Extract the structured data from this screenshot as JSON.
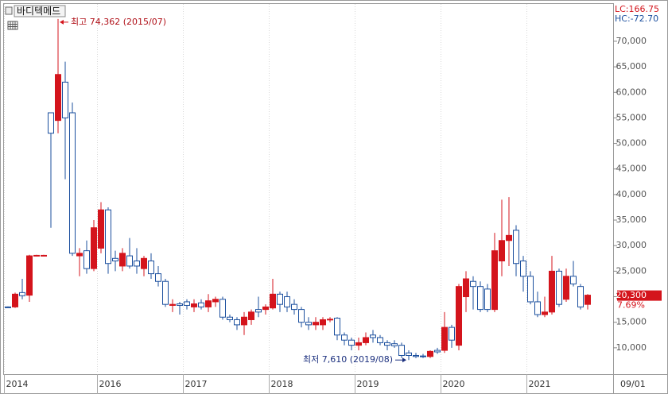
{
  "chart_data": {
    "type": "candlestick",
    "title": "바디텍메드",
    "categories": [
      "2014",
      null,
      null,
      null,
      null,
      null,
      null,
      null,
      null,
      null,
      null,
      null,
      null,
      "2016",
      null,
      null,
      null,
      null,
      null,
      null,
      null,
      null,
      null,
      null,
      null,
      "2017",
      null,
      null,
      null,
      null,
      null,
      null,
      null,
      null,
      null,
      null,
      null,
      "2018",
      null,
      null,
      null,
      null,
      null,
      null,
      null,
      null,
      null,
      null,
      null,
      "2019",
      null,
      null,
      null,
      null,
      null,
      null,
      null,
      null,
      null,
      null,
      null,
      "2020",
      null,
      null,
      null,
      null,
      null,
      null,
      null,
      null,
      null,
      null,
      null,
      "2021",
      null,
      null,
      null,
      null,
      null,
      null,
      null,
      null
    ],
    "open": [
      18000,
      18000,
      20800,
      20300,
      28000,
      28000,
      56000,
      54500,
      62000,
      56000,
      28000,
      29000,
      25500,
      29500,
      37000,
      27500,
      26000,
      28000,
      27000,
      25500,
      27000,
      24500,
      23000,
      18300,
      18600,
      19000,
      18000,
      18800,
      18000,
      19000,
      19500,
      16000,
      15500,
      14500,
      15500,
      17500,
      17500,
      17800,
      20500,
      20000,
      18500,
      17500,
      15000,
      14500,
      14500,
      15500,
      15800,
      12500,
      11500,
      10500,
      11000,
      12500,
      12000,
      11000,
      10800,
      10500,
      9000,
      8500,
      8400,
      8300,
      9500,
      9500,
      14000,
      10500,
      20000,
      23000,
      22000,
      21500,
      17500,
      27000,
      31000,
      33000,
      27000,
      24000,
      19000,
      16500,
      17000,
      25000,
      19500,
      24000,
      22000,
      18500
    ],
    "high": [
      18100,
      20800,
      23500,
      28200,
      28200,
      28200,
      56000,
      74362,
      66000,
      58000,
      29500,
      31000,
      35000,
      38500,
      37500,
      29000,
      29500,
      31500,
      29500,
      28000,
      28500,
      26000,
      23500,
      19500,
      19000,
      19500,
      19500,
      19500,
      20500,
      20000,
      20000,
      16500,
      16000,
      17000,
      17500,
      20000,
      18500,
      23500,
      21000,
      21000,
      19500,
      18000,
      16000,
      16000,
      16000,
      16000,
      16000,
      13000,
      12000,
      12000,
      13000,
      13500,
      12500,
      11500,
      11500,
      11000,
      9500,
      9000,
      8800,
      9500,
      10000,
      17000,
      14500,
      22500,
      25000,
      24000,
      23000,
      22500,
      32500,
      39000,
      39500,
      34000,
      28000,
      25000,
      21000,
      20000,
      28000,
      25500,
      25500,
      27000,
      22500,
      20500
    ],
    "low": [
      17900,
      17800,
      19500,
      19000,
      27900,
      27900,
      33500,
      52000,
      43000,
      28000,
      24000,
      24500,
      25000,
      28500,
      24500,
      25000,
      25000,
      25500,
      24500,
      24000,
      23500,
      22000,
      18000,
      17000,
      16500,
      17500,
      17000,
      17500,
      17000,
      18000,
      15500,
      15000,
      13500,
      12500,
      14500,
      16000,
      16500,
      17500,
      17000,
      17000,
      16500,
      14000,
      13500,
      13500,
      13500,
      15000,
      11500,
      10500,
      9500,
      9500,
      10500,
      11000,
      10500,
      9500,
      10000,
      8000,
      7610,
      8000,
      8000,
      8000,
      8800,
      9000,
      10000,
      9500,
      17000,
      17500,
      17000,
      17000,
      17000,
      24000,
      26000,
      24000,
      21000,
      18500,
      16000,
      16000,
      16500,
      18000,
      19000,
      22000,
      17500,
      17500
    ],
    "close": [
      17900,
      20500,
      20200,
      28000,
      28100,
      28100,
      52000,
      63500,
      55000,
      28500,
      28500,
      25500,
      33500,
      37000,
      26500,
      27000,
      28500,
      26000,
      26000,
      27500,
      24500,
      23000,
      18500,
      18500,
      18300,
      18300,
      18600,
      18000,
      19200,
      19500,
      16000,
      15500,
      14500,
      16000,
      17000,
      17000,
      18000,
      20500,
      18500,
      18000,
      17500,
      15000,
      14500,
      15000,
      15500,
      15600,
      12500,
      11500,
      10500,
      11000,
      12000,
      12000,
      11000,
      10500,
      10400,
      8500,
      8500,
      8300,
      8300,
      9300,
      9200,
      14000,
      11500,
      22000,
      23500,
      22000,
      17500,
      17500,
      29000,
      31000,
      32000,
      26500,
      24000,
      19000,
      16500,
      17000,
      25000,
      18500,
      24000,
      22500,
      18000,
      20300
    ],
    "up_color": "#d4141c",
    "down_color": "#1b4f9e",
    "ylim": [
      5000,
      77300
    ],
    "yticks": [
      {
        "value": 10000,
        "label": "10,000"
      },
      {
        "value": 15000,
        "label": "15,000"
      },
      {
        "value": 20000,
        "label": "20,000"
      },
      {
        "value": 25000,
        "label": "25,000"
      },
      {
        "value": 30000,
        "label": "30,000"
      },
      {
        "value": 35000,
        "label": "35,000"
      },
      {
        "value": 40000,
        "label": "40,000"
      },
      {
        "value": 45000,
        "label": "45,000"
      },
      {
        "value": 50000,
        "label": "50,000"
      },
      {
        "value": 55000,
        "label": "55,000"
      },
      {
        "value": 60000,
        "label": "60,000"
      },
      {
        "value": 65000,
        "label": "65,000"
      },
      {
        "value": 70000,
        "label": "70,000"
      }
    ],
    "x_end_label": "09/01",
    "high_annotation": "최고 74,362 (2015/07)",
    "low_annotation": "최저 7,610 (2019/08)",
    "lc_label": "LC:166.75",
    "hc_label": "HC:-72.70",
    "current_price": {
      "value": 20300,
      "label": "20,300"
    },
    "change_label": "7.69%"
  }
}
